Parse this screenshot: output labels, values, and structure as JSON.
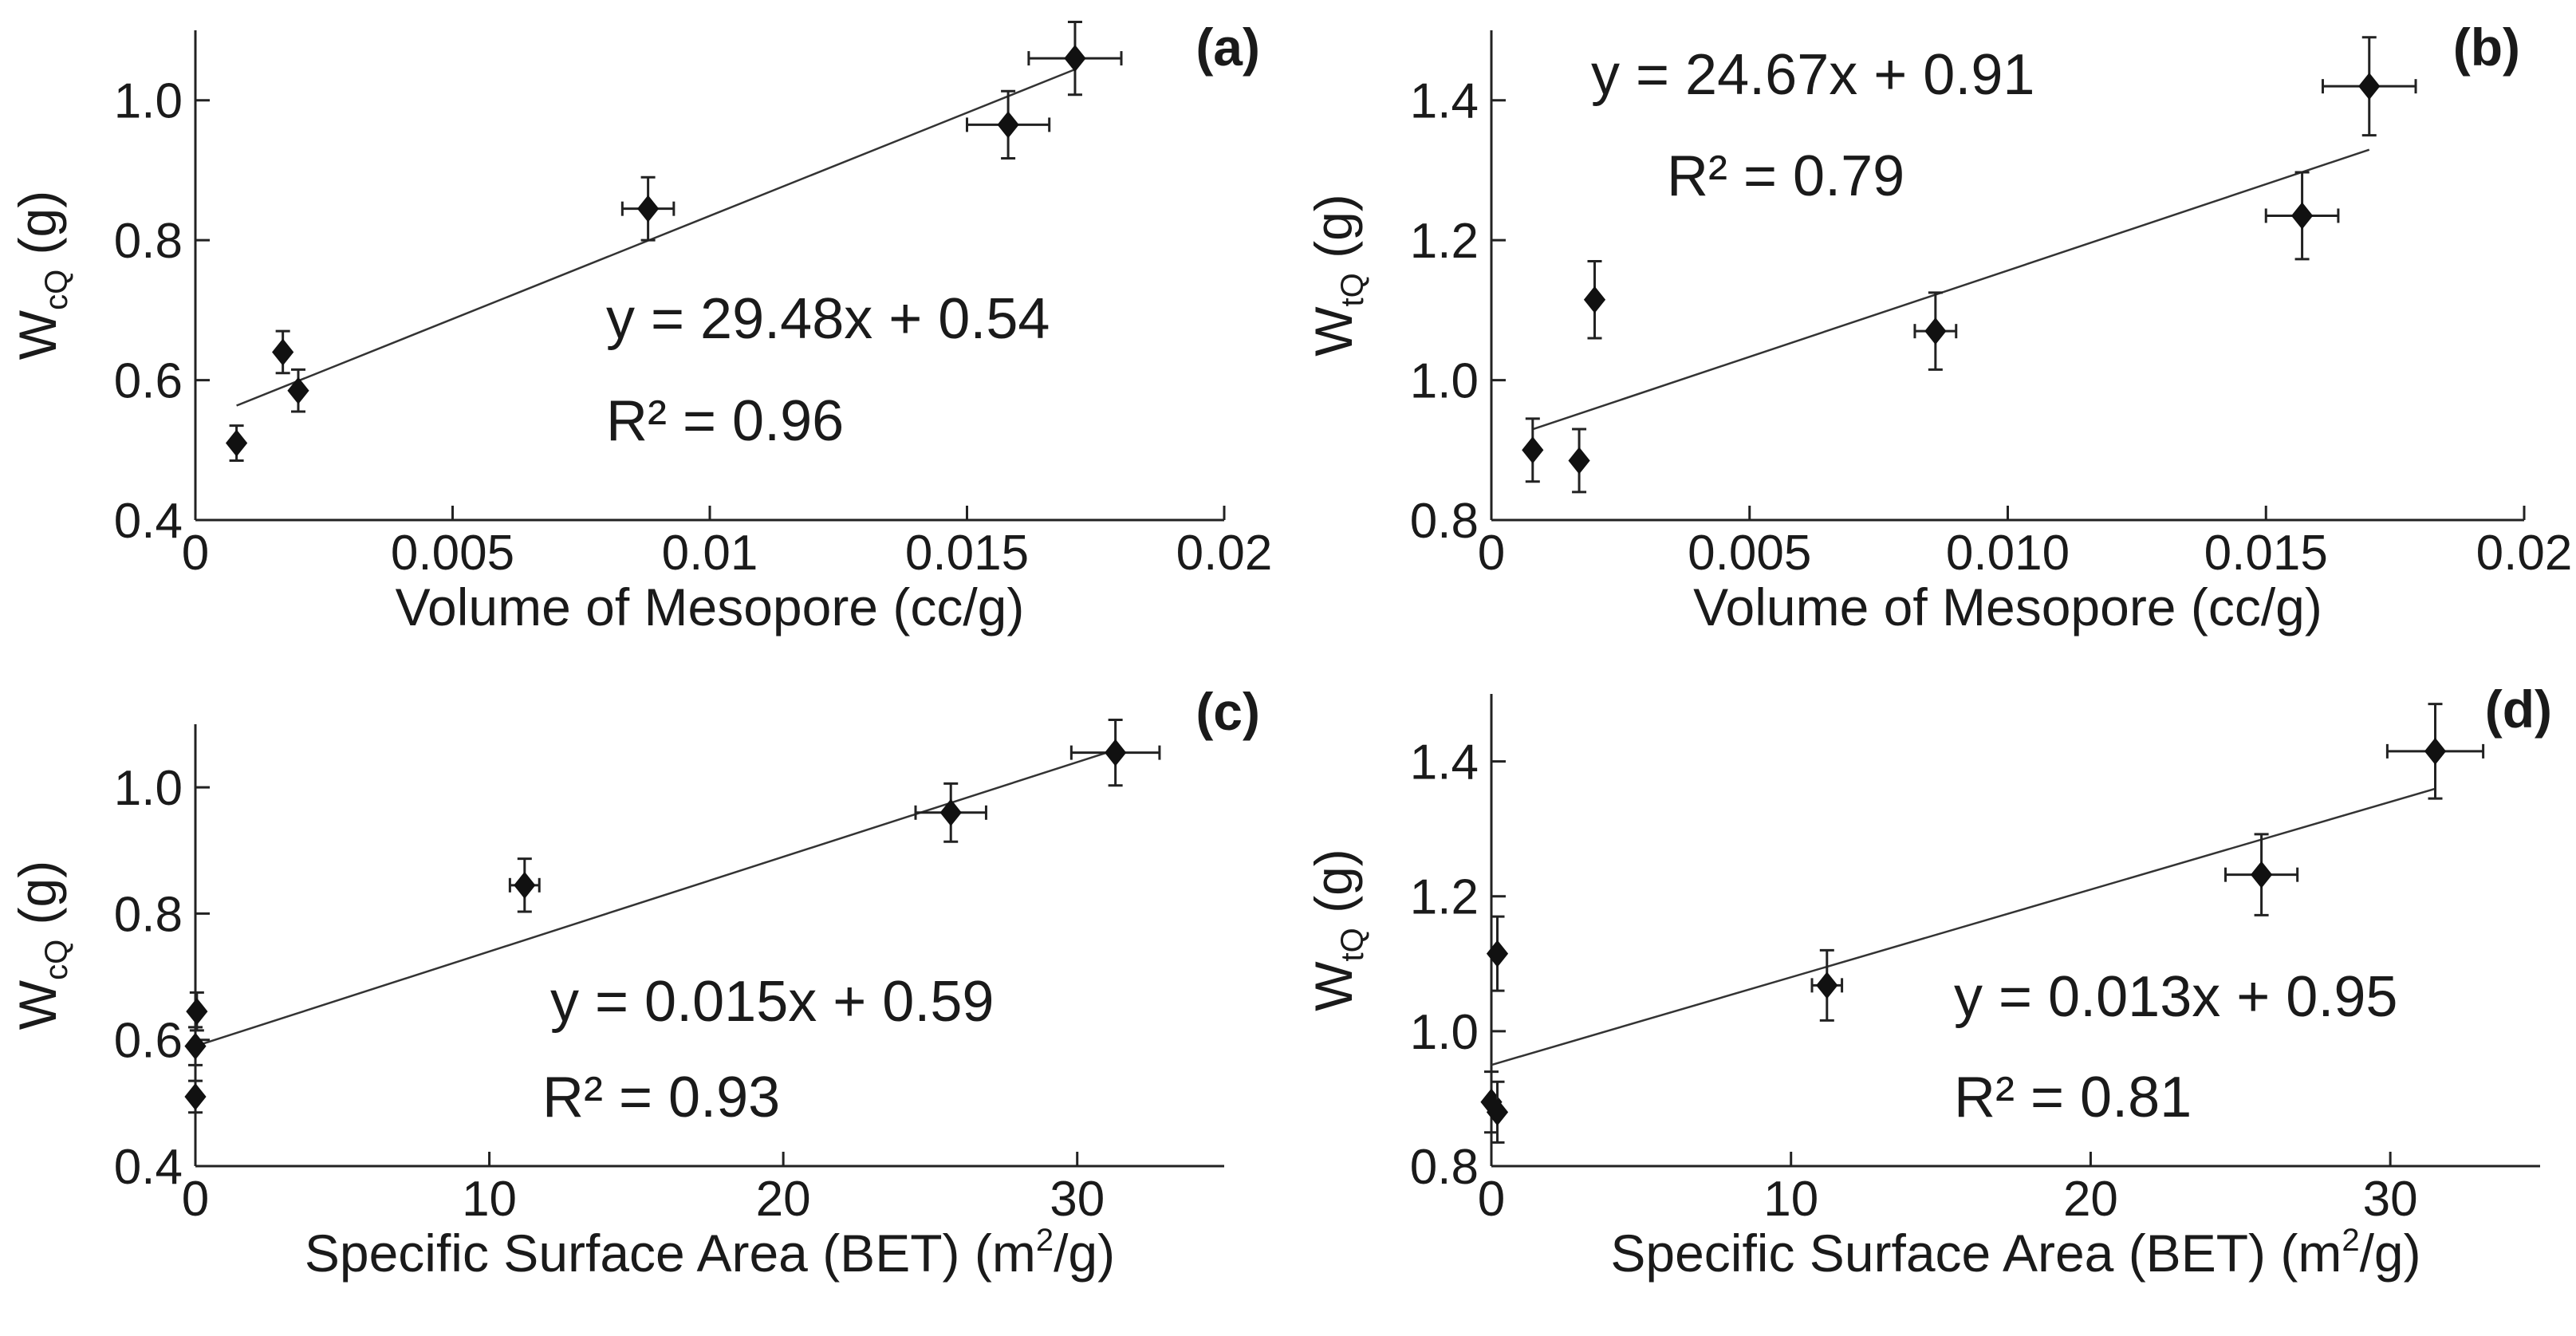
{
  "figure_title": "",
  "panel_tags": [
    "(a)",
    "(b)",
    "(c)",
    "(d)"
  ],
  "chart_data": [
    {
      "type": "scatter",
      "panel": "(a)",
      "xlabel": "Volume of Mesopore (cc/g)",
      "ylabel": {
        "main": "W",
        "sub": "cQ",
        "unit": " (g)"
      },
      "xlim": [
        0,
        0.02
      ],
      "ylim": [
        0.4,
        1.1
      ],
      "xticks": [
        0,
        0.005,
        0.01,
        0.015,
        0.02
      ],
      "xtick_labels": [
        "0",
        "0.005",
        "0.01",
        "0.015",
        "0.02"
      ],
      "yticks": [
        0.4,
        0.6,
        0.8,
        1.0
      ],
      "ytick_labels": [
        "0.4",
        "0.6",
        "0.8",
        "1.0"
      ],
      "points": [
        {
          "x": 0.0008,
          "y": 0.51,
          "xerr": 0,
          "yerr": 0.025
        },
        {
          "x": 0.0017,
          "y": 0.64,
          "xerr": 0,
          "yerr": 0.03
        },
        {
          "x": 0.002,
          "y": 0.585,
          "xerr": 0,
          "yerr": 0.03
        },
        {
          "x": 0.0088,
          "y": 0.845,
          "xerr": 0.0005,
          "yerr": 0.045
        },
        {
          "x": 0.0158,
          "y": 0.965,
          "xerr": 0.0008,
          "yerr": 0.048
        },
        {
          "x": 0.0171,
          "y": 1.06,
          "xerr": 0.0009,
          "yerr": 0.052
        }
      ],
      "fit": {
        "slope": 29.48,
        "intercept": 0.54,
        "x_range": [
          0.0008,
          0.0171
        ]
      },
      "equation": "y = 29.48x + 0.54",
      "r2": "R² = 0.96"
    },
    {
      "type": "scatter",
      "panel": "(b)",
      "xlabel": "Volume of Mesopore (cc/g)",
      "ylabel": {
        "main": "W",
        "sub": "tQ",
        "unit": " (g)"
      },
      "xlim": [
        0,
        0.02
      ],
      "ylim": [
        0.8,
        1.5
      ],
      "xticks": [
        0,
        0.005,
        0.01,
        0.015,
        0.02
      ],
      "xtick_labels": [
        "0",
        "0.005",
        "0.010",
        "0.015",
        "0.02"
      ],
      "yticks": [
        0.8,
        1.0,
        1.2,
        1.4
      ],
      "ytick_labels": [
        "0.8",
        "1.0",
        "1.2",
        "1.4"
      ],
      "points": [
        {
          "x": 0.0008,
          "y": 0.9,
          "xerr": 0,
          "yerr": 0.045
        },
        {
          "x": 0.0017,
          "y": 0.885,
          "xerr": 0,
          "yerr": 0.045
        },
        {
          "x": 0.002,
          "y": 1.115,
          "xerr": 0,
          "yerr": 0.055
        },
        {
          "x": 0.0086,
          "y": 1.07,
          "xerr": 0.0004,
          "yerr": 0.055
        },
        {
          "x": 0.0157,
          "y": 1.235,
          "xerr": 0.0007,
          "yerr": 0.062
        },
        {
          "x": 0.017,
          "y": 1.42,
          "xerr": 0.0009,
          "yerr": 0.07
        }
      ],
      "fit": {
        "slope": 24.67,
        "intercept": 0.91,
        "x_range": [
          0.0008,
          0.017
        ]
      },
      "equation": "y = 24.67x + 0.91",
      "r2": "R² = 0.79"
    },
    {
      "type": "scatter",
      "panel": "(c)",
      "xlabel": {
        "main": "Specific Surface Area (BET) (m",
        "sup": "2",
        "tail": "/g)"
      },
      "ylabel": {
        "main": "W",
        "sub": "cQ",
        "unit": " (g)"
      },
      "xlim": [
        0,
        35
      ],
      "ylim": [
        0.4,
        1.1
      ],
      "xticks": [
        0,
        10,
        20,
        30
      ],
      "xtick_labels": [
        "0",
        "10",
        "20",
        "30"
      ],
      "yticks": [
        0.4,
        0.6,
        0.8,
        1.0
      ],
      "ytick_labels": [
        "0.4",
        "0.6",
        "0.8",
        "1.0"
      ],
      "points": [
        {
          "x": 0.0,
          "y": 0.51,
          "xerr": 0,
          "yerr": 0.025
        },
        {
          "x": 0.05,
          "y": 0.645,
          "xerr": 0,
          "yerr": 0.03
        },
        {
          "x": 0.0,
          "y": 0.59,
          "xerr": 0,
          "yerr": 0.03
        },
        {
          "x": 11.2,
          "y": 0.845,
          "xerr": 0.5,
          "yerr": 0.042
        },
        {
          "x": 25.7,
          "y": 0.96,
          "xerr": 1.2,
          "yerr": 0.046
        },
        {
          "x": 31.3,
          "y": 1.055,
          "xerr": 1.5,
          "yerr": 0.052
        }
      ],
      "fit": {
        "slope": 0.015,
        "intercept": 0.59,
        "x_range": [
          0.0,
          31.3
        ]
      },
      "equation": "y = 0.015x + 0.59",
      "r2": "R² = 0.93"
    },
    {
      "type": "scatter",
      "panel": "(d)",
      "xlabel": {
        "main": "Specific Surface Area (BET) (m",
        "sup": "2",
        "tail": "/g)"
      },
      "ylabel": {
        "main": "W",
        "sub": "tQ",
        "unit": " (g)"
      },
      "xlim": [
        0,
        35
      ],
      "ylim": [
        0.8,
        1.5
      ],
      "xticks": [
        0,
        10,
        20,
        30
      ],
      "xtick_labels": [
        "0",
        "10",
        "20",
        "30"
      ],
      "yticks": [
        0.8,
        1.0,
        1.2,
        1.4
      ],
      "ytick_labels": [
        "0.8",
        "1.0",
        "1.2",
        "1.4"
      ],
      "points": [
        {
          "x": 0.0,
          "y": 0.895,
          "xerr": 0,
          "yerr": 0.045
        },
        {
          "x": 0.2,
          "y": 0.88,
          "xerr": 0,
          "yerr": 0.045
        },
        {
          "x": 0.2,
          "y": 1.115,
          "xerr": 0,
          "yerr": 0.055
        },
        {
          "x": 11.2,
          "y": 1.068,
          "xerr": 0.5,
          "yerr": 0.052
        },
        {
          "x": 25.7,
          "y": 1.232,
          "xerr": 1.2,
          "yerr": 0.06
        },
        {
          "x": 31.5,
          "y": 1.415,
          "xerr": 1.6,
          "yerr": 0.07
        }
      ],
      "fit": {
        "slope": 0.013,
        "intercept": 0.95,
        "x_range": [
          0.0,
          31.5
        ]
      },
      "equation": "y = 0.013x + 0.95",
      "r2": "R² = 0.81"
    }
  ]
}
